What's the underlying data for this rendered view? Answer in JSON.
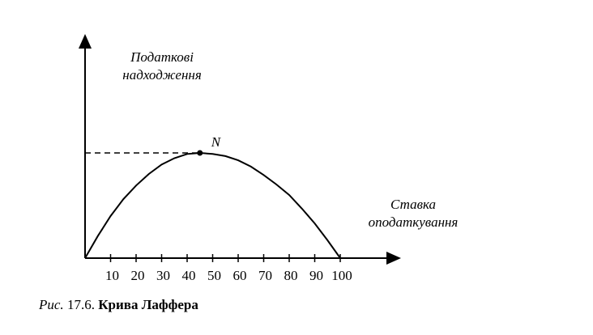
{
  "chart_data": {
    "type": "line",
    "ylabel": [
      "Податкові",
      "надходження"
    ],
    "xlabel": [
      "Ставка",
      "оподаткування"
    ],
    "caption": [
      "Рис.",
      "17.6.",
      "Крива Лаффера"
    ],
    "x": [
      0,
      5,
      10,
      15,
      20,
      25,
      30,
      35,
      40,
      45,
      50,
      55,
      60,
      65,
      70,
      75,
      80,
      85,
      90,
      95,
      100
    ],
    "values": [
      0,
      21,
      40,
      56,
      69,
      80,
      89,
      95,
      99,
      100,
      99,
      97,
      93,
      87,
      79,
      70,
      60,
      47,
      33,
      17,
      0
    ],
    "color": "#000000",
    "peak": {
      "label": "N",
      "x": 45,
      "y": 100
    },
    "xlim": [
      0,
      120
    ],
    "ylim": [
      0,
      210
    ],
    "xticks": [
      10,
      20,
      30,
      40,
      50,
      60,
      70,
      80,
      90,
      100
    ]
  }
}
